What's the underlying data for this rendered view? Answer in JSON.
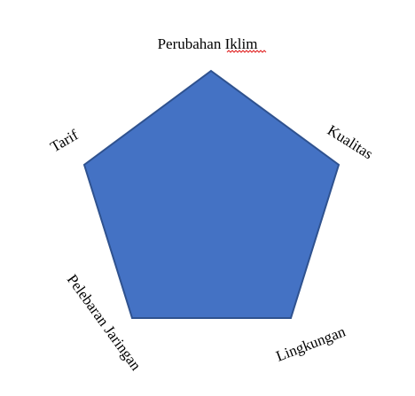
{
  "diagram": {
    "shape": "pentagon",
    "fill_color": "#4472c4",
    "stroke_color": "#2f528f",
    "labels": {
      "top": "Perubahan Iklim",
      "right": "Kualitas",
      "bottom_right": "Lingkungan",
      "bottom_left": "Pelebaran Jaringan",
      "left": "Tarif"
    },
    "spellcheck_underline_color": "#e02020"
  }
}
